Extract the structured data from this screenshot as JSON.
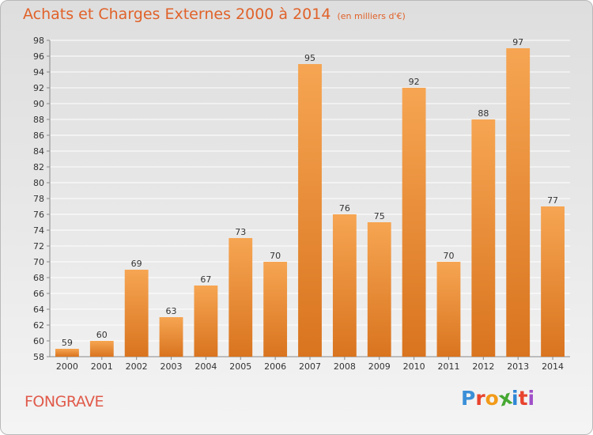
{
  "header": {
    "title": "Achats et Charges Externes 2000 à 2014",
    "subtitle": "(en milliers d'€)"
  },
  "footer": {
    "place": "FONGRAVE",
    "logo": "Proxiti",
    "logo_colors": [
      "#3b8fd8",
      "#e8432e",
      "#f29a18",
      "#46a832",
      "#2e86d6",
      "#e8432e",
      "#a050c8"
    ]
  },
  "colors": {
    "bar_light": "#f6a552",
    "bar_dark": "#d9741f",
    "grid": "#ffffff",
    "axis": "#888888"
  },
  "chart_data": {
    "type": "bar",
    "title": "Achats et Charges Externes 2000 à 2014",
    "categories": [
      "2000",
      "2001",
      "2002",
      "2003",
      "2004",
      "2005",
      "2006",
      "2007",
      "2008",
      "2009",
      "2010",
      "2011",
      "2012",
      "2013",
      "2014"
    ],
    "values": [
      59,
      60,
      69,
      63,
      67,
      73,
      70,
      95,
      76,
      75,
      92,
      70,
      88,
      97,
      77
    ],
    "ylim": [
      58,
      98
    ],
    "ytick_step": 2,
    "grid": true,
    "xlabel": "",
    "ylabel": ""
  }
}
